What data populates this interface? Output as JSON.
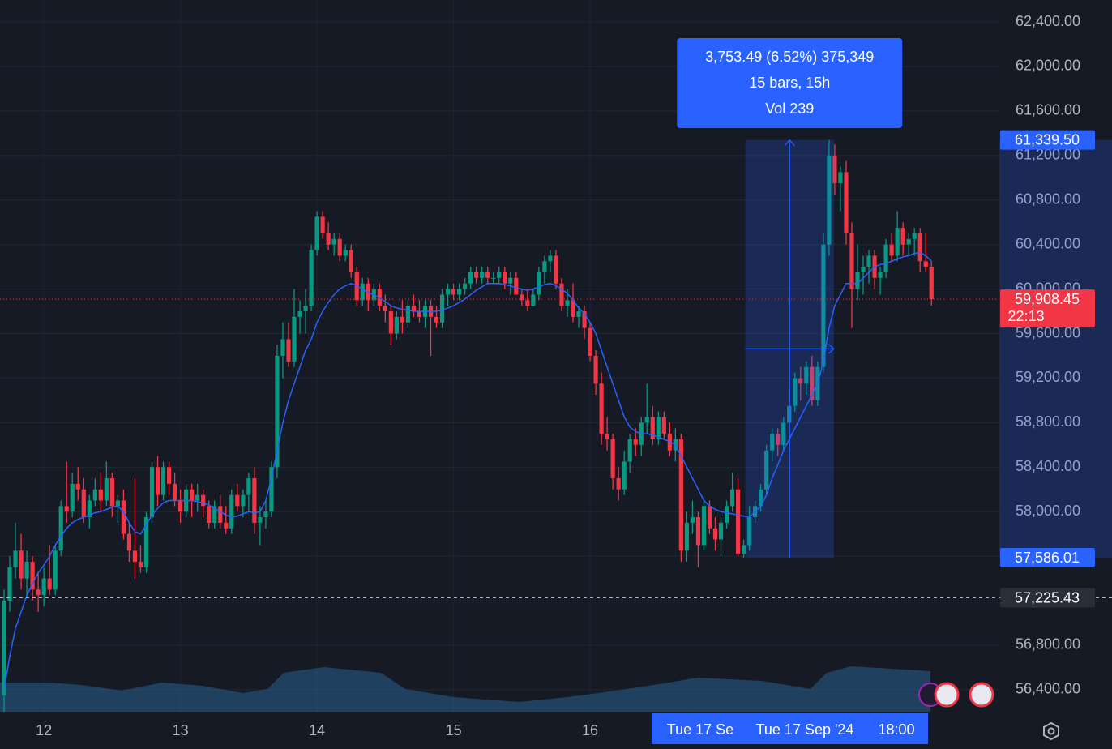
{
  "chart_data": {
    "type": "candlestick",
    "categories": [
      null,
      null,
      null,
      null,
      null,
      null,
      null,
      "12",
      null,
      null,
      null,
      null,
      null,
      null,
      null,
      null,
      null,
      null,
      null,
      null,
      null,
      null,
      null,
      null,
      null,
      null,
      null,
      null,
      null,
      null,
      null,
      "13",
      null,
      null,
      null,
      null,
      null,
      null,
      null,
      null,
      null,
      null,
      null,
      null,
      null,
      null,
      null,
      null,
      null,
      null,
      null,
      null,
      null,
      null,
      null,
      "14",
      null,
      null,
      null,
      null,
      null,
      null,
      null,
      null,
      null,
      null,
      null,
      null,
      null,
      null,
      null,
      null,
      null,
      null,
      null,
      null,
      null,
      null,
      null,
      "15",
      null,
      null,
      null,
      null,
      null,
      null,
      null,
      null,
      null,
      null,
      null,
      null,
      null,
      null,
      null,
      null,
      null,
      null,
      null,
      null,
      null,
      null,
      null,
      "16",
      null,
      null,
      null,
      null,
      null,
      null,
      null,
      null,
      null,
      null,
      null,
      null,
      null,
      null,
      null,
      null,
      null,
      null,
      null,
      null,
      null,
      null,
      null,
      null,
      null,
      null,
      null,
      null,
      null,
      null,
      null,
      null,
      null,
      null,
      null,
      null,
      null,
      null,
      null,
      null,
      null,
      null,
      null,
      null,
      null,
      null,
      null,
      null,
      null,
      null,
      null,
      null,
      null,
      null,
      null,
      null,
      null,
      null,
      null,
      null
    ],
    "open": [
      56350,
      57200,
      57500,
      57650,
      57400,
      57550,
      57300,
      57250,
      57400,
      57300,
      57650,
      58050,
      58000,
      58250,
      58200,
      57950,
      58100,
      58200,
      58100,
      58300,
      58050,
      58100,
      57800,
      57650,
      57550,
      57500,
      57950,
      58400,
      58150,
      58400,
      58250,
      58100,
      58000,
      58200,
      58100,
      58150,
      58050,
      57900,
      58050,
      57900,
      57850,
      58150,
      58050,
      58150,
      58300,
      57900,
      57950,
      58000,
      58400,
      59400,
      59550,
      59350,
      59750,
      59800,
      59850,
      60350,
      60650,
      60500,
      60400,
      60450,
      60300,
      60350,
      60150,
      59900,
      60050,
      59900,
      60000,
      59850,
      59800,
      59600,
      59750,
      59700,
      59850,
      59800,
      59750,
      59850,
      59750,
      59700,
      59950,
      60000,
      59950,
      60000,
      60050,
      60150,
      60100,
      60150,
      60100,
      60100,
      60150,
      60050,
      60100,
      59950,
      59900,
      59850,
      59950,
      60150,
      60250,
      60300,
      60050,
      59850,
      59900,
      59750,
      59800,
      59650,
      59400,
      59150,
      58700,
      58650,
      58300,
      58200,
      58450,
      58650,
      58600,
      58800,
      58850,
      58650,
      58850,
      58700,
      58550,
      58650,
      57650,
      57900,
      57950,
      57700,
      58050,
      57850,
      57750,
      57900,
      58050,
      58200,
      57620,
      57700,
      57950,
      58050,
      58200,
      58550,
      58700,
      58600,
      58800,
      58950,
      59200,
      59150,
      59300,
      59000,
      59300,
      60400,
      61200,
      60950,
      61050,
      60500,
      60000,
      60150,
      60200,
      60300,
      60100,
      60150,
      60400,
      60300,
      60550,
      60400,
      60450,
      60500,
      60250,
      60200
    ],
    "high": [
      57300,
      57600,
      57900,
      57800,
      57650,
      57600,
      57450,
      57500,
      57700,
      57700,
      58100,
      58450,
      58350,
      58400,
      58300,
      58150,
      58300,
      58350,
      58450,
      58350,
      58150,
      58200,
      57900,
      58300,
      57700,
      58000,
      58450,
      58500,
      58450,
      58450,
      58350,
      58200,
      58250,
      58250,
      58250,
      58200,
      58100,
      58100,
      58150,
      58050,
      58200,
      58250,
      58200,
      58350,
      58400,
      58050,
      58100,
      58450,
      59500,
      59700,
      59700,
      60000,
      59900,
      60000,
      60400,
      60700,
      60700,
      60600,
      60500,
      60500,
      60400,
      60400,
      60200,
      60100,
      60100,
      60050,
      60050,
      59950,
      59850,
      59800,
      59900,
      59900,
      59950,
      59900,
      59900,
      59900,
      59850,
      60000,
      60050,
      60050,
      60050,
      60100,
      60200,
      60200,
      60200,
      60200,
      60150,
      60200,
      60200,
      60150,
      60150,
      60000,
      60000,
      60000,
      60200,
      60300,
      60350,
      60350,
      60100,
      60000,
      60050,
      59850,
      59850,
      59700,
      59450,
      59250,
      58850,
      58700,
      58400,
      58550,
      58700,
      58750,
      58850,
      59150,
      58950,
      58900,
      58900,
      58800,
      58750,
      58700,
      58000,
      58100,
      58000,
      58100,
      58100,
      57950,
      57950,
      58100,
      58350,
      58300,
      57750,
      58050,
      58100,
      58250,
      58600,
      58750,
      58750,
      58850,
      59100,
      59250,
      59300,
      59350,
      59400,
      59350,
      60500,
      61339.5,
      61300,
      61100,
      61150,
      60600,
      60400,
      60300,
      60350,
      60350,
      60200,
      60450,
      60500,
      60700,
      60600,
      60500,
      60550,
      60550,
      60500,
      60250
    ],
    "low": [
      56200,
      57100,
      57400,
      57300,
      57250,
      57200,
      57100,
      57150,
      57250,
      57250,
      57600,
      57900,
      57950,
      58100,
      57900,
      57850,
      58050,
      58000,
      58050,
      57950,
      57900,
      57750,
      57550,
      57400,
      57450,
      57450,
      57900,
      58050,
      58100,
      58150,
      58050,
      57900,
      57950,
      57950,
      58000,
      57950,
      57850,
      57850,
      57850,
      57800,
      57800,
      58000,
      57950,
      58000,
      57800,
      57700,
      57850,
      57950,
      58300,
      59200,
      59300,
      59300,
      59600,
      59600,
      59800,
      60300,
      60450,
      60350,
      60300,
      60250,
      60250,
      60100,
      59850,
      59850,
      59800,
      59850,
      59800,
      59700,
      59500,
      59550,
      59600,
      59650,
      59750,
      59700,
      59650,
      59400,
      59650,
      59650,
      59850,
      59900,
      59900,
      59950,
      60000,
      60050,
      60050,
      60050,
      60050,
      60050,
      60000,
      59950,
      59950,
      59850,
      59800,
      59850,
      59900,
      60050,
      60150,
      60000,
      59800,
      59750,
      59700,
      59650,
      59550,
      59350,
      59050,
      58600,
      58550,
      58200,
      58100,
      58150,
      58350,
      58500,
      58500,
      58700,
      58600,
      58600,
      58650,
      58500,
      58450,
      57550,
      57550,
      57800,
      57500,
      57650,
      57800,
      57650,
      57600,
      57850,
      58000,
      57600,
      57586.01,
      57650,
      57900,
      58000,
      58150,
      58450,
      58500,
      58550,
      58750,
      58900,
      59000,
      59050,
      58950,
      58950,
      59250,
      60300,
      60850,
      60700,
      60400,
      59650,
      59900,
      59950,
      60050,
      60000,
      59950,
      60100,
      60250,
      60250,
      60300,
      60300,
      60300,
      60150,
      60150,
      59850
    ],
    "close": [
      57200,
      57500,
      57650,
      57400,
      57550,
      57300,
      57250,
      57400,
      57300,
      57650,
      58050,
      58000,
      58250,
      58200,
      57950,
      58100,
      58200,
      58100,
      58300,
      58050,
      58100,
      57800,
      57650,
      57550,
      57500,
      57950,
      58400,
      58150,
      58400,
      58250,
      58100,
      58000,
      58200,
      58100,
      58150,
      58050,
      57900,
      58050,
      57900,
      57850,
      58150,
      58050,
      58150,
      58300,
      57900,
      57950,
      58000,
      58400,
      59400,
      59550,
      59350,
      59750,
      59800,
      59850,
      60350,
      60650,
      60500,
      60400,
      60450,
      60300,
      60350,
      60150,
      59900,
      60050,
      59900,
      60000,
      59850,
      59800,
      59600,
      59750,
      59700,
      59850,
      59800,
      59750,
      59850,
      59750,
      59700,
      59950,
      60000,
      59950,
      60000,
      60050,
      60150,
      60100,
      60150,
      60100,
      60100,
      60150,
      60050,
      60100,
      59950,
      59900,
      59850,
      59950,
      60150,
      60250,
      60300,
      60050,
      59850,
      59900,
      59750,
      59800,
      59650,
      59400,
      59150,
      58700,
      58650,
      58300,
      58200,
      58450,
      58650,
      58600,
      58800,
      58850,
      58650,
      58850,
      58700,
      58550,
      58650,
      57650,
      57900,
      57950,
      57700,
      58050,
      57850,
      57750,
      57900,
      58050,
      58200,
      57620,
      57700,
      57950,
      58050,
      58200,
      58550,
      58700,
      58600,
      58800,
      58950,
      59200,
      59150,
      59300,
      59000,
      59300,
      60400,
      61200,
      60950,
      61050,
      60500,
      60000,
      60150,
      60200,
      60300,
      60100,
      60150,
      60400,
      60300,
      60550,
      60400,
      60450,
      60500,
      60250,
      60200,
      59908.45
    ],
    "up_color": "#089981",
    "down_color": "#f23645",
    "ma": {
      "color": "#2962ff",
      "values": [
        56400,
        56700,
        56950,
        57100,
        57250,
        57350,
        57450,
        57520,
        57600,
        57700,
        57780,
        57850,
        57900,
        57930,
        57950,
        57970,
        57990,
        58000,
        58020,
        58040,
        58050,
        58000,
        57900,
        57820,
        57800,
        57880,
        57970,
        58030,
        58080,
        58100,
        58100,
        58100,
        58100,
        58100,
        58090,
        58080,
        58060,
        58030,
        58000,
        57970,
        57950,
        57960,
        57980,
        58000,
        57990,
        58000,
        58100,
        58300,
        58550,
        58800,
        59000,
        59150,
        59300,
        59450,
        59550,
        59700,
        59800,
        59880,
        59950,
        60000,
        60030,
        60050,
        60030,
        60000,
        59970,
        59950,
        59920,
        59890,
        59850,
        59830,
        59820,
        59810,
        59800,
        59800,
        59800,
        59800,
        59800,
        59810,
        59830,
        59850,
        59880,
        59910,
        59950,
        59990,
        60020,
        60050,
        60050,
        60050,
        60040,
        60030,
        60010,
        60000,
        59990,
        60000,
        60020,
        60040,
        60050,
        60030,
        60000,
        59960,
        59900,
        59830,
        59780,
        59700,
        59600,
        59450,
        59300,
        59150,
        59000,
        58850,
        58760,
        58720,
        58700,
        58700,
        58690,
        58670,
        58650,
        58630,
        58600,
        58500,
        58400,
        58300,
        58200,
        58100,
        58050,
        58020,
        58000,
        57990,
        57980,
        57970,
        57960,
        57950,
        58000,
        58050,
        58150,
        58300,
        58420,
        58550,
        58650,
        58750,
        58850,
        58950,
        59050,
        59150,
        59350,
        59650,
        59850,
        59950,
        60050,
        60050,
        60050,
        60100,
        60150,
        60200,
        60220,
        60230,
        60250,
        60270,
        60290,
        60300,
        60320,
        60330,
        60300,
        60250
      ]
    },
    "ylim": [
      56188,
      62597
    ],
    "yticks": [
      {
        "value": 56400,
        "label": "56,400.00"
      },
      {
        "value": 56800,
        "label": "56,800.00"
      },
      {
        "value": 57200,
        "label": "57,200.00"
      },
      {
        "value": 57600,
        "label": "57,600.00"
      },
      {
        "value": 58000,
        "label": "58,000.00"
      },
      {
        "value": 58400,
        "label": "58,400.00"
      },
      {
        "value": 58800,
        "label": "58,800.00"
      },
      {
        "value": 59200,
        "label": "59,200.00"
      },
      {
        "value": 59600,
        "label": "59,600.00"
      },
      {
        "value": 60000,
        "label": "60,000.00"
      },
      {
        "value": 60400,
        "label": "60,400.00"
      },
      {
        "value": 60800,
        "label": "60,800.00"
      },
      {
        "value": 61200,
        "label": "61,200.00"
      },
      {
        "value": 61600,
        "label": "61,600.00"
      },
      {
        "value": 62000,
        "label": "62,000.00"
      },
      {
        "value": 62400,
        "label": "62,400.00"
      }
    ],
    "grid": true,
    "measure": {
      "low": {
        "value": 57586.01,
        "label": "57,586.01"
      },
      "high": {
        "value": 61339.5,
        "label": "61,339.50"
      },
      "lines": [
        "3,753.49 (6.52%) 375,349",
        "15 bars, 15h",
        "Vol 239"
      ]
    },
    "last_price": {
      "value": 59908.45,
      "label": "59,908.45",
      "countdown": "22:13"
    },
    "reference_line": {
      "value": 57225.43,
      "label": "57,225.43"
    },
    "crosshair_labels": [
      "Tue 17 Se",
      "Tue 17 Sep '24",
      "18:00"
    ]
  }
}
